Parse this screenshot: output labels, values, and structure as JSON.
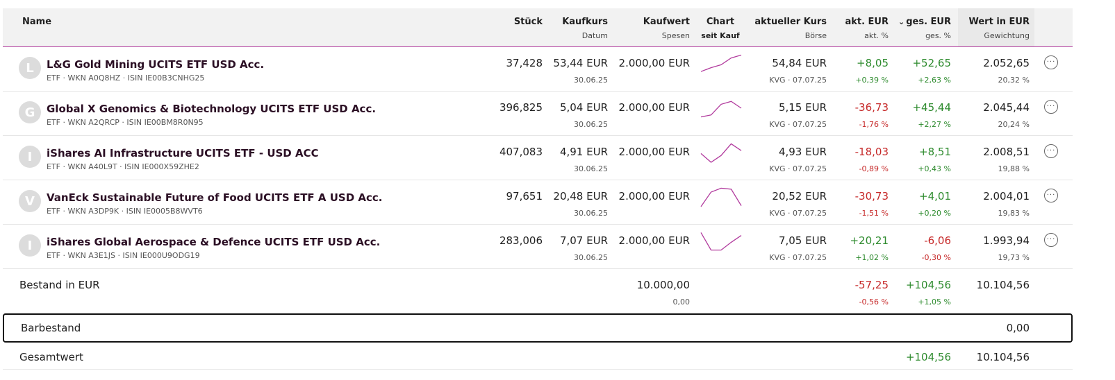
{
  "header": {
    "name": "Name",
    "stueck": "Stück",
    "kaufkurs": "Kaufkurs",
    "kaufkurs_sub": "Datum",
    "kaufwert": "Kaufwert",
    "kaufwert_sub": "Spesen",
    "chart": "Chart",
    "chart_sub": "seit Kauf",
    "aktueller_kurs": "aktueller Kurs",
    "aktueller_kurs_sub": "Börse",
    "akt_eur": "akt. EUR",
    "akt_eur_sub": "akt. %",
    "ges_eur": "ges. EUR",
    "ges_eur_sub": "ges. %",
    "sort_icon": "chevron-down-icon",
    "wert": "Wert in EUR",
    "wert_sub": "Gewichtung"
  },
  "rows": [
    {
      "initial": "L",
      "name": "L&G Gold Mining UCITS ETF USD Acc.",
      "meta": "ETF · WKN A0Q8HZ · ISIN IE00B3CNHG25",
      "stueck": "37,428",
      "kaufkurs": "53,44 EUR",
      "datum": "30.06.25",
      "kaufwert": "2.000,00 EUR",
      "kurs": "54,84 EUR",
      "boerse": "KVG · 07.07.25",
      "akt_eur": "+8,05",
      "akt_pct": "+0,39 %",
      "ges_eur": "+52,65",
      "ges_pct": "+2,63 %",
      "wert": "2.052,65",
      "gewichtung": "20,32 %",
      "spark": [
        0.1,
        0.3,
        0.45,
        0.8,
        0.95
      ]
    },
    {
      "initial": "G",
      "name": "Global X Genomics & Biotechnology UCITS ETF USD Acc.",
      "meta": "ETF · WKN A2QRCP · ISIN IE00BM8R0N95",
      "stueck": "396,825",
      "kaufkurs": "5,04 EUR",
      "datum": "30.06.25",
      "kaufwert": "2.000,00 EUR",
      "kurs": "5,15 EUR",
      "boerse": "KVG · 07.07.25",
      "akt_eur": "-36,73",
      "akt_pct": "-1,76 %",
      "ges_eur": "+45,44",
      "ges_pct": "+2,27 %",
      "wert": "2.045,44",
      "gewichtung": "20,24 %",
      "spark": [
        0.05,
        0.15,
        0.7,
        0.85,
        0.5
      ]
    },
    {
      "initial": "I",
      "name": "iShares AI Infrastructure UCITS ETF - USD ACC",
      "meta": "ETF · WKN A40L9T · ISIN IE000X59ZHE2",
      "stueck": "407,083",
      "kaufkurs": "4,91 EUR",
      "datum": "30.06.25",
      "kaufwert": "2.000,00 EUR",
      "kurs": "4,93 EUR",
      "boerse": "KVG · 07.07.25",
      "akt_eur": "-18,03",
      "akt_pct": "-0,89 %",
      "ges_eur": "+8,51",
      "ges_pct": "+0,43 %",
      "wert": "2.008,51",
      "gewichtung": "19,88 %",
      "spark": [
        0.45,
        0.0,
        0.35,
        0.95,
        0.6
      ]
    },
    {
      "initial": "V",
      "name": "VanEck Sustainable Future of Food UCITS ETF A USD Acc.",
      "meta": "ETF · WKN A3DP9K · ISIN IE0005B8WVT6",
      "stueck": "97,651",
      "kaufkurs": "20,48 EUR",
      "datum": "30.06.25",
      "kaufwert": "2.000,00 EUR",
      "kurs": "20,52 EUR",
      "boerse": "KVG · 07.07.25",
      "akt_eur": "-30,73",
      "akt_pct": "-1,51 %",
      "ges_eur": "+4,01",
      "ges_pct": "+0,20 %",
      "wert": "2.004,01",
      "gewichtung": "19,83 %",
      "spark": [
        0.0,
        0.75,
        0.95,
        0.9,
        0.05
      ]
    },
    {
      "initial": "I",
      "name": "iShares Global Aerospace & Defence UCITS ETF USD Acc.",
      "meta": "ETF · WKN A3E1JS · ISIN IE000U9ODG19",
      "stueck": "283,006",
      "kaufkurs": "7,07 EUR",
      "datum": "30.06.25",
      "kaufwert": "2.000,00 EUR",
      "kurs": "7,05 EUR",
      "boerse": "KVG · 07.07.25",
      "akt_eur": "+20,21",
      "akt_pct": "+1,02 %",
      "ges_eur": "-6,06",
      "ges_pct": "-0,30 %",
      "wert": "1.993,94",
      "gewichtung": "19,73 %",
      "spark": [
        0.95,
        0.05,
        0.05,
        0.45,
        0.8
      ]
    }
  ],
  "bestand": {
    "label": "Bestand in EUR",
    "kaufwert": "10.000,00",
    "spesen": "0,00",
    "akt_eur": "-57,25",
    "akt_pct": "-0,56 %",
    "ges_eur": "+104,56",
    "ges_pct": "+1,05 %",
    "wert": "10.104,56"
  },
  "barbestand": {
    "label": "Barbestand",
    "wert": "0,00"
  },
  "gesamtwert": {
    "label": "Gesamtwert",
    "ges_eur": "+104,56",
    "wert": "10.104,56"
  },
  "colors": {
    "accent": "#b23c9e",
    "positive": "#2e8b2e",
    "negative": "#c62828"
  }
}
